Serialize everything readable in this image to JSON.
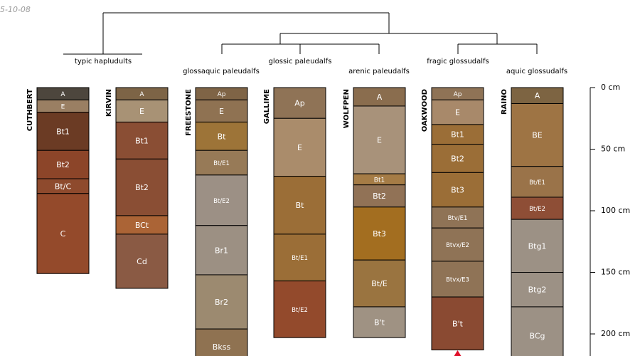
{
  "corner_label": "5-10-08",
  "depth_axis": {
    "unit": "cm",
    "max_depth_cm": 220,
    "ticks": [
      {
        "depth": 0,
        "label": "0 cm"
      },
      {
        "depth": 50,
        "label": "50 cm"
      },
      {
        "depth": 100,
        "label": "100 cm"
      },
      {
        "depth": 150,
        "label": "150 cm"
      },
      {
        "depth": 200,
        "label": "200 cm"
      }
    ]
  },
  "taxa_groups": [
    {
      "name": "typic hapludults",
      "profiles": [
        "CUTHBERT",
        "KIRVIN"
      ]
    },
    {
      "name": "glossaquic paleudalfs",
      "profiles": [
        "FREESTONE"
      ]
    },
    {
      "name": "glossic paleudalfs",
      "profiles": [
        "GALLIME"
      ]
    },
    {
      "name": "arenic paleudalfs",
      "profiles": [
        "WOLFPEN"
      ]
    },
    {
      "name": "fragic glossudalfs",
      "profiles": [
        "OAKWOOD"
      ]
    },
    {
      "name": "aquic glossudalfs",
      "profiles": [
        "RAINO"
      ]
    }
  ],
  "profiles": [
    {
      "name": "CUTHBERT",
      "horizons": [
        {
          "name": "A",
          "top": 0,
          "bottom": 10,
          "color": "#4d463d"
        },
        {
          "name": "E",
          "top": 10,
          "bottom": 20,
          "color": "#9a7f63"
        },
        {
          "name": "Bt1",
          "top": 20,
          "bottom": 51,
          "color": "#6b3b24"
        },
        {
          "name": "Bt2",
          "top": 51,
          "bottom": 74,
          "color": "#8c4529"
        },
        {
          "name": "Bt/C",
          "top": 74,
          "bottom": 86,
          "color": "#8e4a2d"
        },
        {
          "name": "C",
          "top": 86,
          "bottom": 151,
          "color": "#944a2b"
        }
      ]
    },
    {
      "name": "KIRVIN",
      "horizons": [
        {
          "name": "A",
          "top": 0,
          "bottom": 10,
          "color": "#7d6446"
        },
        {
          "name": "E",
          "top": 10,
          "bottom": 28,
          "color": "#a89275"
        },
        {
          "name": "Bt1",
          "top": 28,
          "bottom": 58,
          "color": "#8a4e34"
        },
        {
          "name": "Bt2",
          "top": 58,
          "bottom": 104,
          "color": "#8a4e34"
        },
        {
          "name": "BCt",
          "top": 104,
          "bottom": 119,
          "color": "#ab6436"
        },
        {
          "name": "Cd",
          "top": 119,
          "bottom": 163,
          "color": "#8a5a44"
        }
      ]
    },
    {
      "name": "FREESTONE",
      "horizons": [
        {
          "name": "Ap",
          "top": 0,
          "bottom": 10,
          "color": "#7f6446"
        },
        {
          "name": "E",
          "top": 10,
          "bottom": 28,
          "color": "#8f7252"
        },
        {
          "name": "Bt",
          "top": 28,
          "bottom": 51,
          "color": "#9d7438"
        },
        {
          "name": "Bt/E1",
          "top": 51,
          "bottom": 71,
          "color": "#977a57"
        },
        {
          "name": "Bt/E2",
          "top": 71,
          "bottom": 112,
          "color": "#9c9085"
        },
        {
          "name": "Br1",
          "top": 112,
          "bottom": 152,
          "color": "#9c9083"
        },
        {
          "name": "Br2",
          "top": 152,
          "bottom": 196,
          "color": "#9c8a70"
        },
        {
          "name": "Bkss",
          "top": 196,
          "bottom": 225,
          "color": "#8f7251"
        }
      ]
    },
    {
      "name": "GALLIME",
      "horizons": [
        {
          "name": "Ap",
          "top": 0,
          "bottom": 25,
          "color": "#8f7356"
        },
        {
          "name": "E",
          "top": 25,
          "bottom": 72,
          "color": "#aa8c6b"
        },
        {
          "name": "Bt",
          "top": 72,
          "bottom": 119,
          "color": "#9b6e37"
        },
        {
          "name": "Bt/E1",
          "top": 119,
          "bottom": 157,
          "color": "#9b6e37"
        },
        {
          "name": "Bt/E2",
          "top": 157,
          "bottom": 203,
          "color": "#934a2c"
        }
      ]
    },
    {
      "name": "WOLFPEN",
      "horizons": [
        {
          "name": "A",
          "top": 0,
          "bottom": 15,
          "color": "#8a6d4e"
        },
        {
          "name": "E",
          "top": 15,
          "bottom": 70,
          "color": "#a8927a"
        },
        {
          "name": "Bt1",
          "top": 70,
          "bottom": 79,
          "color": "#a57c46"
        },
        {
          "name": "Bt2",
          "top": 79,
          "bottom": 97,
          "color": "#917256"
        },
        {
          "name": "Bt3",
          "top": 97,
          "bottom": 140,
          "color": "#a36e20"
        },
        {
          "name": "Bt/E",
          "top": 140,
          "bottom": 178,
          "color": "#9a7440"
        },
        {
          "name": "B't",
          "top": 178,
          "bottom": 203,
          "color": "#9f9283"
        }
      ]
    },
    {
      "name": "OAKWOOD",
      "horizons": [
        {
          "name": "Ap",
          "top": 0,
          "bottom": 10,
          "color": "#8f7356"
        },
        {
          "name": "E",
          "top": 10,
          "bottom": 30,
          "color": "#a8896a"
        },
        {
          "name": "Bt1",
          "top": 30,
          "bottom": 46,
          "color": "#9b6e37"
        },
        {
          "name": "Bt2",
          "top": 46,
          "bottom": 69,
          "color": "#9b6e37"
        },
        {
          "name": "Bt3",
          "top": 69,
          "bottom": 97,
          "color": "#9b6e37"
        },
        {
          "name": "Btv/E1",
          "top": 97,
          "bottom": 114,
          "color": "#8f7356"
        },
        {
          "name": "Btvx/E2",
          "top": 114,
          "bottom": 141,
          "color": "#8f7356"
        },
        {
          "name": "Btvx/E3",
          "top": 141,
          "bottom": 170,
          "color": "#8f7356"
        },
        {
          "name": "B't",
          "top": 170,
          "bottom": 213,
          "color": "#8a4a32"
        }
      ]
    },
    {
      "name": "RAINO",
      "horizons": [
        {
          "name": "A",
          "top": 0,
          "bottom": 13,
          "color": "#7d6442"
        },
        {
          "name": "BE",
          "top": 13,
          "bottom": 64,
          "color": "#9e7444"
        },
        {
          "name": "Bt/E1",
          "top": 64,
          "bottom": 89,
          "color": "#9a7349"
        },
        {
          "name": "Bt/E2",
          "top": 89,
          "bottom": 107,
          "color": "#8e4e36"
        },
        {
          "name": "Btg1",
          "top": 107,
          "bottom": 150,
          "color": "#9c9185"
        },
        {
          "name": "Btg2",
          "top": 150,
          "bottom": 178,
          "color": "#9c9185"
        },
        {
          "name": "BCg",
          "top": 178,
          "bottom": 225,
          "color": "#9c9185"
        }
      ]
    }
  ],
  "colors": {
    "line": "#000000",
    "label_text": "#ffffff",
    "axis_text": "#000000",
    "marker": "#e0102a",
    "corner_text": "#999999"
  }
}
